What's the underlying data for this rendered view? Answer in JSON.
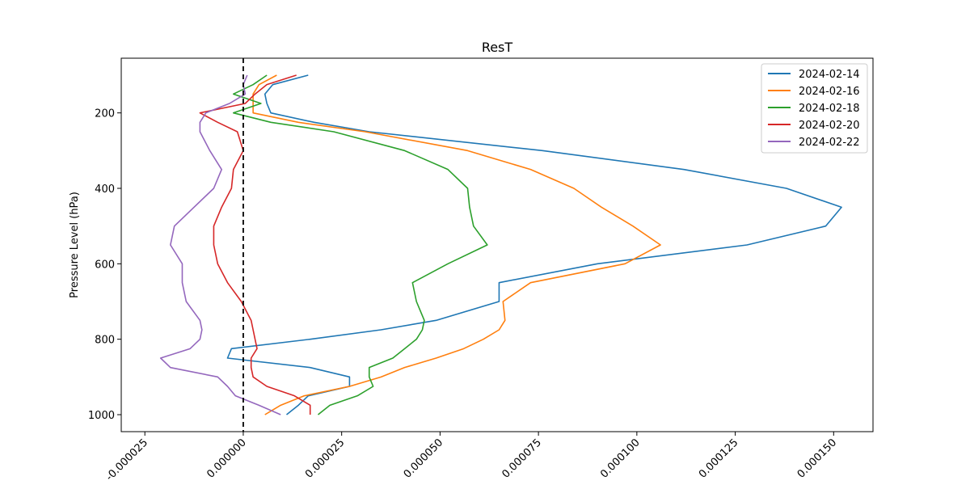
{
  "chart_data": {
    "type": "line",
    "title": "ResT",
    "xlabel": "",
    "ylabel": "Pressure Level (hPa)",
    "xlim": [
      -3.1e-05,
      0.00016
    ],
    "ylim": [
      1045,
      55
    ],
    "y_inverted": true,
    "xticks": [
      -2.5e-05,
      0.0,
      2.5e-05,
      5e-05,
      7.5e-05,
      0.0001,
      0.000125,
      0.00015
    ],
    "xtick_labels": [
      "-0.000025",
      "0.000000",
      "0.000025",
      "0.000050",
      "0.000075",
      "0.000100",
      "0.000125",
      "0.000150"
    ],
    "yticks": [
      200,
      400,
      600,
      800,
      1000
    ],
    "ytick_labels": [
      "200",
      "400",
      "600",
      "800",
      "1000"
    ],
    "reference_line": {
      "x": 0.0,
      "style": "dashed",
      "color": "#000000"
    },
    "legend_position": "top-right",
    "levels": [
      100,
      125,
      150,
      175,
      200,
      225,
      250,
      300,
      350,
      400,
      450,
      500,
      550,
      600,
      650,
      700,
      750,
      775,
      800,
      825,
      850,
      875,
      900,
      925,
      950,
      975,
      1000
    ],
    "series": [
      {
        "name": "2024-02-14",
        "color": "#1f77b4",
        "values": [
          1.65e-05,
          7.5e-06,
          5.5e-06,
          6e-06,
          7e-06,
          1.8e-05,
          3.2e-05,
          7.6e-05,
          0.000112,
          0.000138,
          0.000152,
          0.000148,
          0.000128,
          9e-05,
          6.5e-05,
          6.5e-05,
          4.9e-05,
          3.5e-05,
          1.7e-05,
          -3e-06,
          -4e-06,
          1.7e-05,
          2.7e-05,
          2.7e-05,
          1.65e-05,
          1.4e-05,
          1.1e-05
        ]
      },
      {
        "name": "2024-02-16",
        "color": "#ff7f0e",
        "values": [
          8.5e-06,
          4e-06,
          2.5e-06,
          2.5e-06,
          2.5e-06,
          1.4e-05,
          3.1e-05,
          5.7e-05,
          7.3e-05,
          8.4e-05,
          9.1e-05,
          9.9e-05,
          0.000106,
          9.7e-05,
          7.3e-05,
          6.6e-05,
          6.65e-05,
          6.5e-05,
          6.1e-05,
          5.6e-05,
          4.9e-05,
          4.1e-05,
          3.5e-05,
          2.7e-05,
          1.55e-05,
          9.5e-06,
          5.5e-06
        ]
      },
      {
        "name": "2024-02-18",
        "color": "#2ca02c",
        "values": [
          6e-06,
          2.5e-06,
          -2.5e-06,
          4.5e-06,
          -2.5e-06,
          7e-06,
          2.3e-05,
          4.1e-05,
          5.2e-05,
          5.7e-05,
          5.75e-05,
          5.85e-05,
          6.2e-05,
          5.2e-05,
          4.3e-05,
          4.4e-05,
          4.6e-05,
          4.55e-05,
          4.4e-05,
          4.1e-05,
          3.8e-05,
          3.2e-05,
          3.2e-05,
          3.3e-05,
          2.9e-05,
          2.2e-05,
          1.9e-05
        ]
      },
      {
        "name": "2024-02-20",
        "color": "#d62728",
        "values": [
          1.35e-05,
          6e-06,
          3e-06,
          5e-07,
          -1.1e-05,
          -6.5e-06,
          -1.5e-06,
          0.0,
          -2.5e-06,
          -3e-06,
          -5.5e-06,
          -7.5e-06,
          -7.5e-06,
          -6.5e-06,
          -4e-06,
          -5e-07,
          2e-06,
          2.5e-06,
          3e-06,
          3.5e-06,
          2e-06,
          2e-06,
          2.5e-06,
          6e-06,
          1.3e-05,
          1.7e-05,
          1.7e-05
        ]
      },
      {
        "name": "2024-02-22",
        "color": "#9467bd",
        "values": [
          1e-06,
          0.0,
          5e-07,
          -3.5e-06,
          -9.5e-06,
          -1.1e-05,
          -1.1e-05,
          -8.5e-06,
          -5.5e-06,
          -7.5e-06,
          -1.25e-05,
          -1.75e-05,
          -1.85e-05,
          -1.55e-05,
          -1.55e-05,
          -1.45e-05,
          -1.1e-05,
          -1.05e-05,
          -1.1e-05,
          -1.35e-05,
          -2.1e-05,
          -1.85e-05,
          -6.5e-06,
          -4e-06,
          -2e-06,
          4e-06,
          9.5e-06
        ]
      }
    ]
  }
}
